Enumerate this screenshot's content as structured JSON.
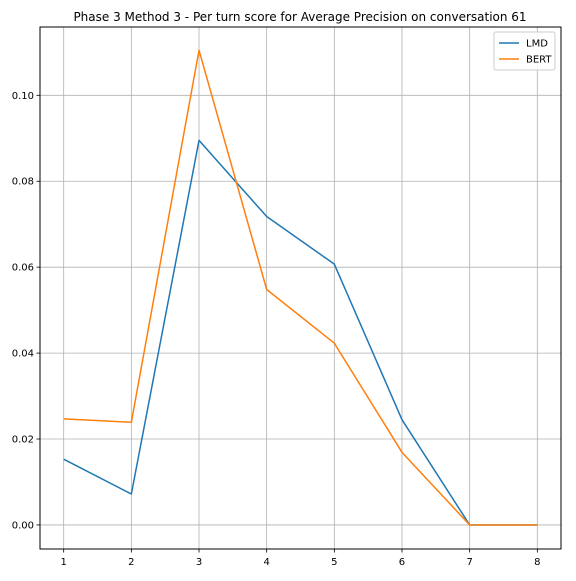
{
  "chart_data": {
    "type": "line",
    "title": "Phase 3 Method 3 - Per turn score for Average Precision on conversation 61",
    "xlabel": "",
    "ylabel": "",
    "x": [
      1,
      2,
      3,
      4,
      5,
      6,
      7,
      8
    ],
    "xticks": [
      "1",
      "2",
      "3",
      "4",
      "5",
      "6",
      "7",
      "8"
    ],
    "yticks": [
      "0.00",
      "0.02",
      "0.04",
      "0.06",
      "0.08",
      "0.10"
    ],
    "xlim": [
      0.65,
      8.35
    ],
    "ylim": [
      -0.0056,
      0.1159
    ],
    "grid": true,
    "legend_position": "top-right",
    "series": [
      {
        "name": "LMD",
        "color": "#1f77b4",
        "values": [
          0.0153,
          0.0072,
          0.0895,
          0.0718,
          0.0607,
          0.0245,
          0.0,
          0.0
        ]
      },
      {
        "name": "BERT",
        "color": "#ff7f0e",
        "values": [
          0.0247,
          0.0239,
          0.1105,
          0.0548,
          0.0423,
          0.0169,
          0.0,
          0.0
        ]
      }
    ]
  }
}
